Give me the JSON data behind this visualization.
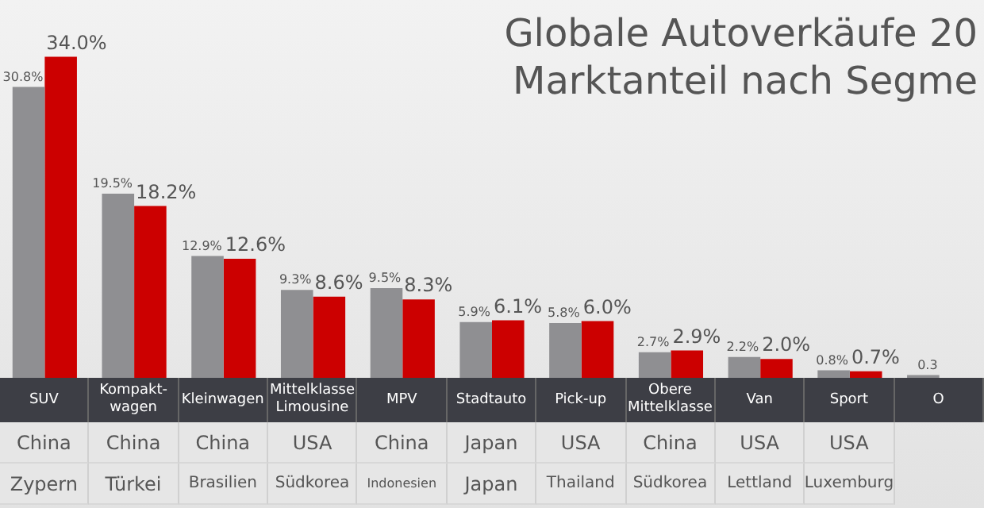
{
  "chart_data": {
    "type": "bar",
    "title": "Globale Autoverkäufe 20",
    "subtitle": "Marktanteil nach Segme",
    "categories": [
      "SUV",
      "Kompakt-wagen",
      "Kleinwagen",
      "Mittelklasse Limousine",
      "MPV",
      "Stadtauto",
      "Pick-up",
      "Obere Mittelklasse",
      "Van",
      "Sport",
      "O"
    ],
    "series": [
      {
        "color": "#8f8f92",
        "values": [
          30.8,
          19.5,
          12.9,
          9.3,
          9.5,
          5.9,
          5.8,
          2.7,
          2.2,
          0.8,
          0.3
        ],
        "value_labels": [
          "30.8%",
          "19.5%",
          "12.9%",
          "9.3%",
          "9.5%",
          "5.9%",
          "5.8%",
          "2.7%",
          "2.2%",
          "0.8%",
          "0.3"
        ]
      },
      {
        "color": "#cc0000",
        "values": [
          34.0,
          18.2,
          12.6,
          8.6,
          8.3,
          6.1,
          6.0,
          2.9,
          2.0,
          0.7,
          null
        ],
        "value_labels": [
          "34.0%",
          "18.2%",
          "12.6%",
          "8.6%",
          "8.3%",
          "6.1%",
          "6.0%",
          "2.9%",
          "2.0%",
          "0.7%",
          null
        ]
      }
    ],
    "annotations": [
      "China",
      "China",
      "China",
      "USA",
      "China",
      "Japan",
      "USA",
      "China",
      "USA",
      "USA",
      "Zypern",
      "Türkei",
      "Brasilien",
      "Südkorea",
      "Indonesien",
      "Japan",
      "Thailand",
      "Südkorea",
      "Lettland",
      "Luxemburg"
    ]
  }
}
